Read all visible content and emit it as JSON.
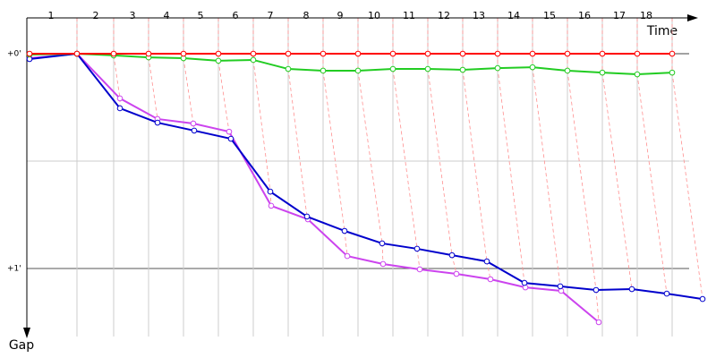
{
  "chart_data": {
    "type": "line",
    "x_label": "Time",
    "y_label": "Gap",
    "xlim": [
      0,
      760
    ],
    "ylim": [
      -0.1667,
      1.3333
    ],
    "yticks": [
      {
        "value": 0,
        "label": "+0'"
      },
      {
        "value": 1,
        "label": "+1'"
      }
    ],
    "laps": [
      {
        "value": 27,
        "label": "1"
      },
      {
        "value": 77,
        "label": "2"
      },
      {
        "value": 118,
        "label": "3"
      },
      {
        "value": 156,
        "label": "4"
      },
      {
        "value": 194,
        "label": "5"
      },
      {
        "value": 233,
        "label": "6"
      },
      {
        "value": 272,
        "label": "7"
      },
      {
        "value": 312,
        "label": "8"
      },
      {
        "value": 350,
        "label": "9"
      },
      {
        "value": 388,
        "label": "10"
      },
      {
        "value": 427,
        "label": "11"
      },
      {
        "value": 466,
        "label": "12"
      },
      {
        "value": 505,
        "label": "13"
      },
      {
        "value": 544,
        "label": "14"
      },
      {
        "value": 584,
        "label": "15"
      },
      {
        "value": 623,
        "label": "16"
      },
      {
        "value": 662,
        "label": "17"
      },
      {
        "value": 692,
        "label": "18"
      }
    ],
    "y_inverted": true,
    "series": [
      {
        "color": "#ff0000",
        "x": [
          3,
          56,
          97,
          136,
          175,
          214,
          253,
          292,
          331,
          370,
          409,
          448,
          487,
          526,
          565,
          604,
          643,
          682,
          721
        ],
        "values": [
          0,
          0,
          0,
          0,
          0,
          0,
          0,
          0,
          0,
          0,
          0,
          0,
          0,
          0,
          0,
          0,
          0,
          0,
          0
        ]
      },
      {
        "color": "#22cc22",
        "x": [
          3,
          56,
          97,
          136,
          175,
          214,
          253,
          292,
          331,
          370,
          409,
          448,
          487,
          526,
          565,
          604,
          643,
          682,
          721
        ],
        "values": [
          0.004,
          0,
          0.008,
          0.017,
          0.021,
          0.033,
          0.029,
          0.071,
          0.079,
          0.079,
          0.071,
          0.071,
          0.075,
          0.067,
          0.063,
          0.079,
          0.088,
          0.096,
          0.088
        ]
      },
      {
        "color": "#0000cc",
        "x": [
          3,
          56,
          104,
          146,
          187,
          228,
          272,
          313,
          355,
          397,
          436,
          475,
          514,
          556,
          596,
          636,
          676,
          715,
          755
        ],
        "values": [
          0.025,
          0,
          0.254,
          0.321,
          0.358,
          0.396,
          0.642,
          0.758,
          0.825,
          0.883,
          0.908,
          0.938,
          0.967,
          1.067,
          1.083,
          1.1,
          1.096,
          1.117,
          1.142
        ]
      },
      {
        "color": "#cc44ee",
        "x": [
          3,
          56,
          104,
          146,
          186,
          226,
          273,
          314,
          358,
          398,
          439,
          480,
          518,
          557,
          597,
          639
        ],
        "values": [
          0.021,
          0,
          0.208,
          0.304,
          0.325,
          0.363,
          0.708,
          0.771,
          0.942,
          0.979,
          1.004,
          1.025,
          1.05,
          1.088,
          1.104,
          1.25
        ]
      }
    ]
  }
}
